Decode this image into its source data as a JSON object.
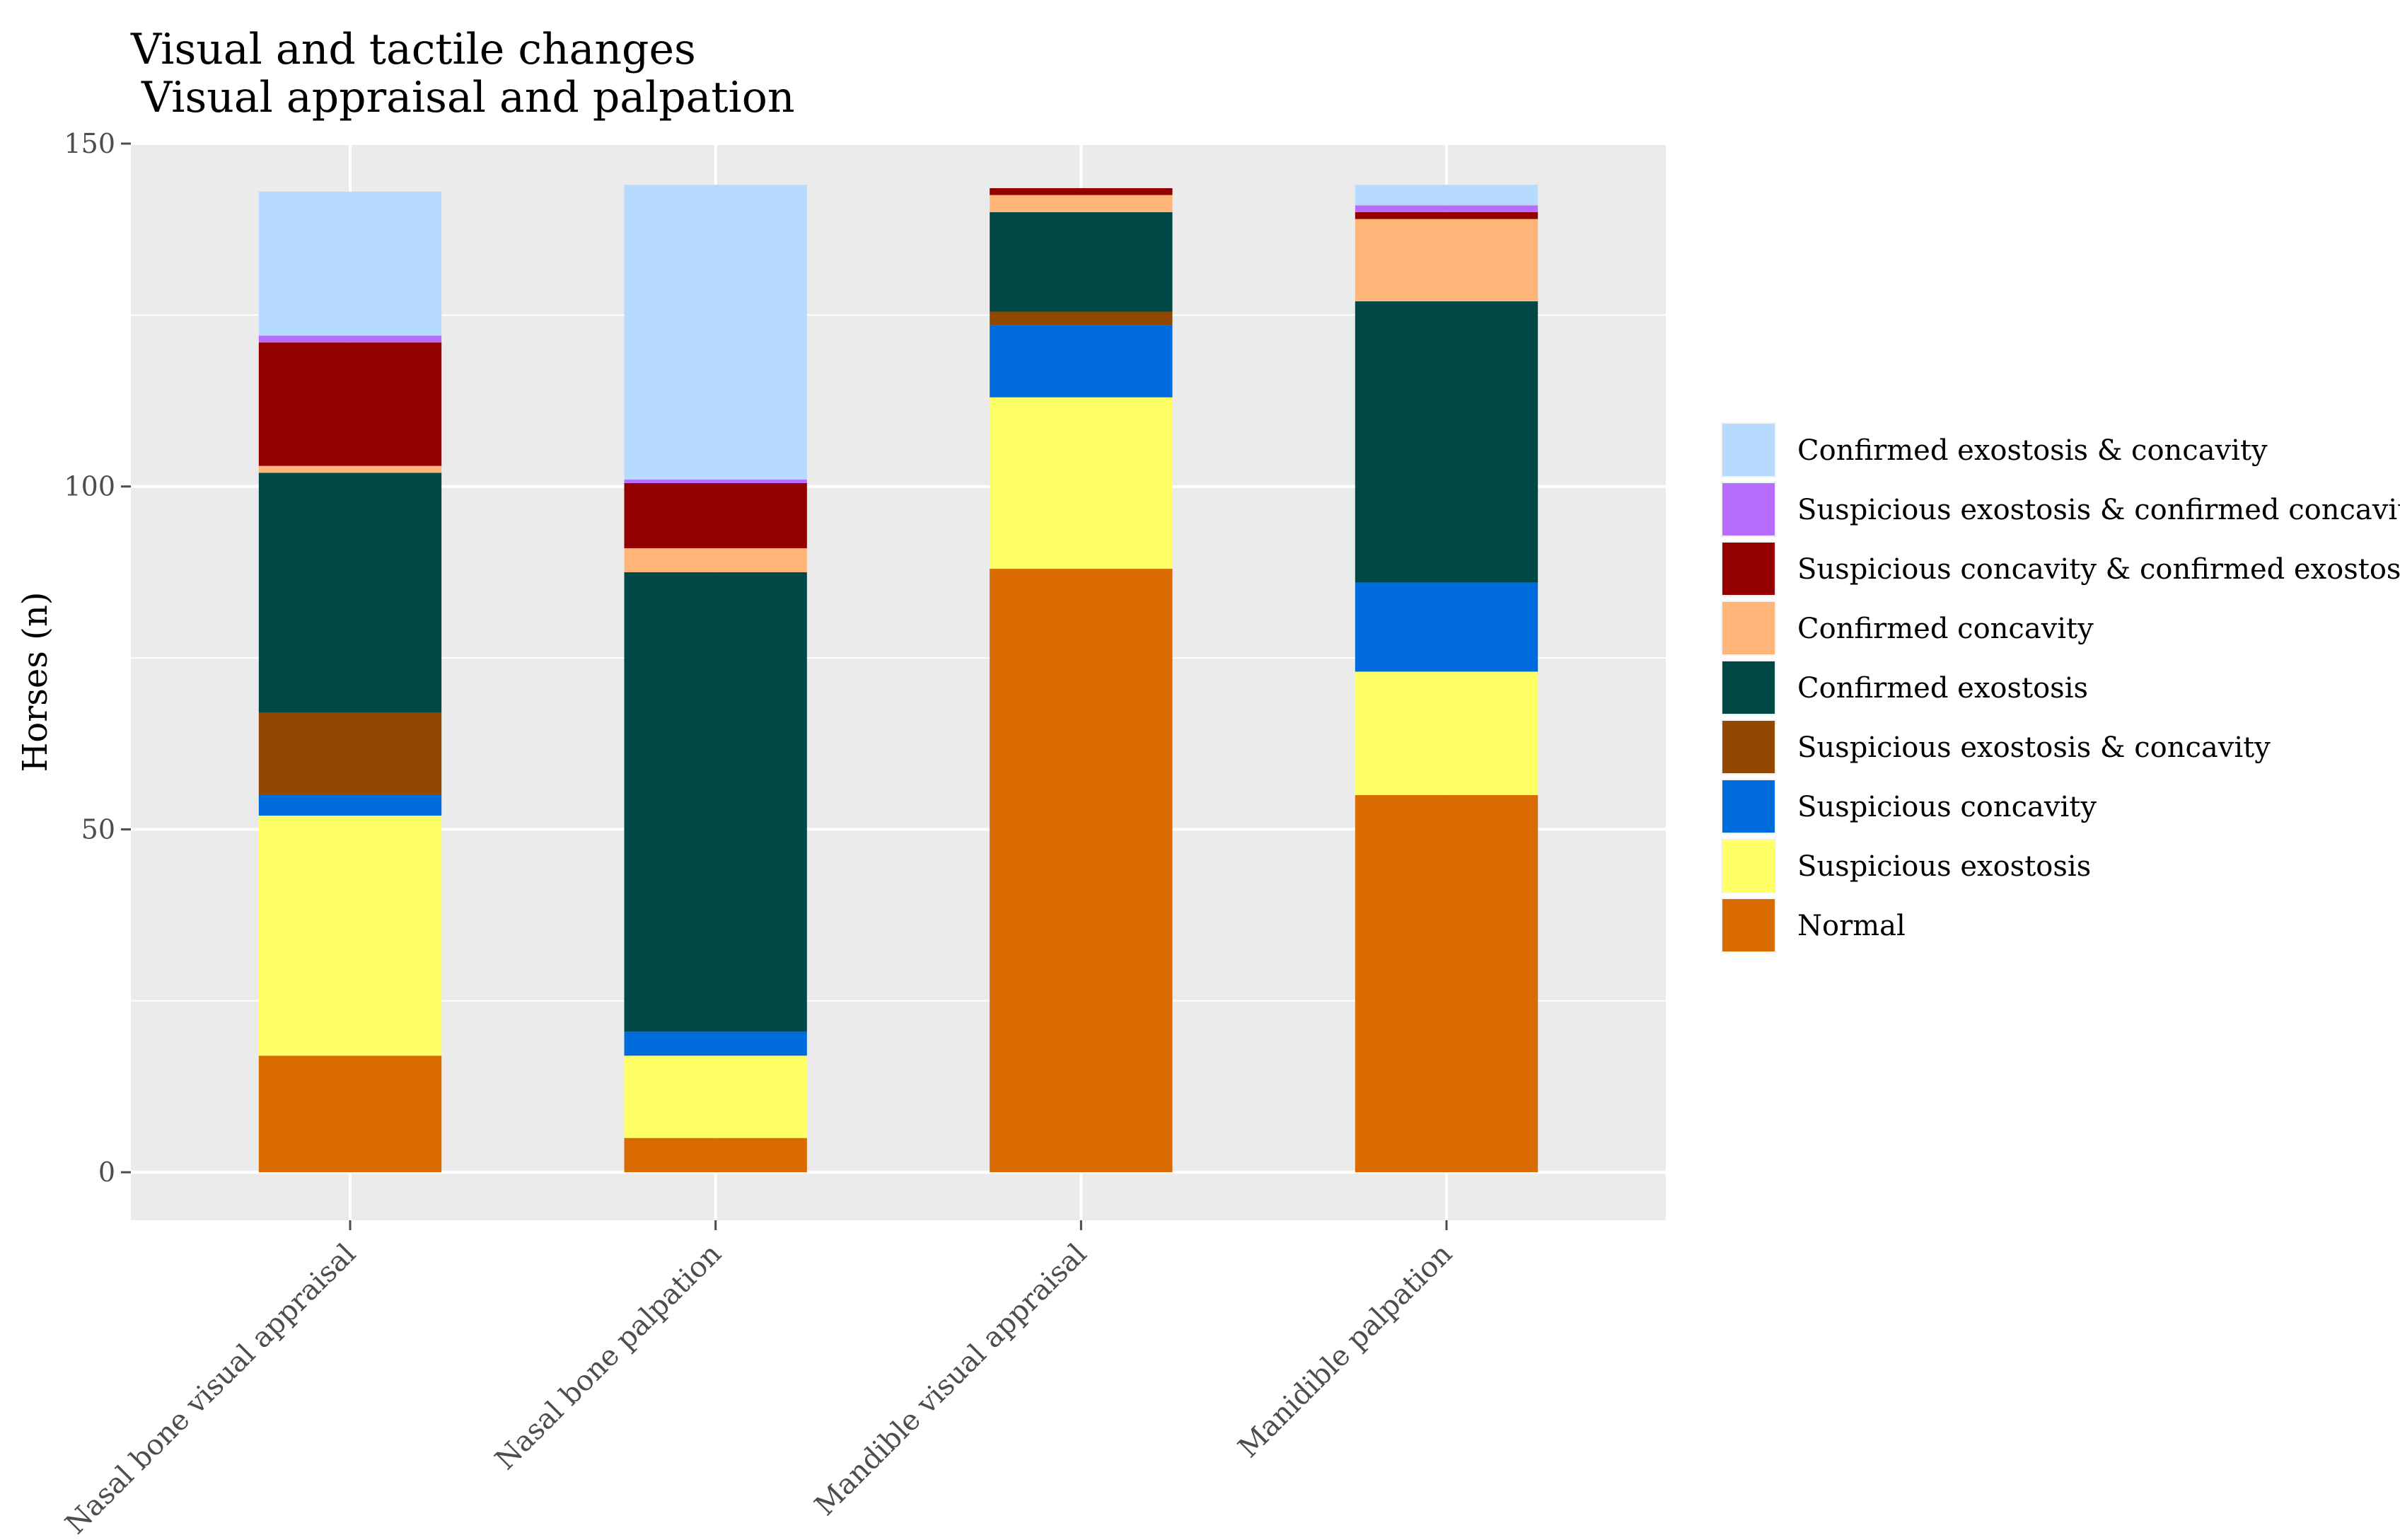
{
  "chart_data": {
    "type": "bar",
    "stacked": true,
    "title": "Visual and tactile changes",
    "subtitle": "Visual appraisal and palpation",
    "xlabel": "",
    "ylabel": "Horses (n)",
    "ylim": [
      -7,
      150
    ],
    "yticks": [
      0,
      50,
      100,
      150
    ],
    "grid": true,
    "legend_position": "right",
    "categories": [
      "Nasal bone visual appraisal",
      "Nasal bone palpation",
      "Mandible visual appraisal",
      "Manidible palpation"
    ],
    "series": [
      {
        "name": "Normal",
        "color": "#D96B00",
        "values": [
          17,
          5,
          88,
          55
        ]
      },
      {
        "name": "Suspicious exostosis",
        "color": "#FFFF66",
        "values": [
          35,
          12,
          25,
          18
        ]
      },
      {
        "name": "Suspicious concavity",
        "color": "#006CDC",
        "values": [
          3,
          3.5,
          10.5,
          13
        ]
      },
      {
        "name": "Suspicious exostosis & concavity",
        "color": "#914800",
        "values": [
          12,
          0,
          2,
          0
        ]
      },
      {
        "name": "Confirmed exostosis",
        "color": "#004846",
        "values": [
          35,
          67,
          14.5,
          41
        ]
      },
      {
        "name": "Confirmed concavity",
        "color": "#FFB578",
        "values": [
          1,
          3.5,
          2.5,
          12
        ]
      },
      {
        "name": "Suspicious concavity & confirmed exostosis",
        "color": "#920000",
        "values": [
          18,
          9.5,
          1,
          1
        ]
      },
      {
        "name": "Suspicious exostosis & confirmed concavity",
        "color": "#B66DFF",
        "values": [
          1,
          0.5,
          0,
          1
        ]
      },
      {
        "name": "Confirmed exostosis & concavity",
        "color": "#B6DBFF",
        "values": [
          21,
          43,
          0,
          3
        ]
      }
    ]
  },
  "legend_order": [
    8,
    7,
    6,
    5,
    4,
    3,
    2,
    1,
    0
  ],
  "colors": {
    "panel": "#EBEBEB",
    "grid": "#FFFFFF",
    "tick": "#4d4d4d"
  }
}
